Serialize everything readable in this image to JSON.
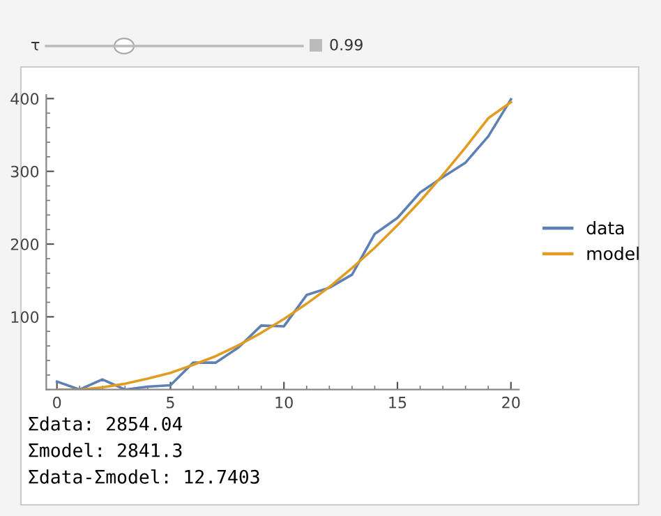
{
  "chart_data": {
    "type": "line",
    "x": [
      0,
      1,
      2,
      3,
      4,
      5,
      6,
      7,
      8,
      9,
      10,
      11,
      12,
      13,
      14,
      15,
      16,
      17,
      18,
      19,
      20
    ],
    "series": [
      {
        "name": "data",
        "color": "#5e81b5",
        "values": [
          11,
          0,
          14,
          0,
          4,
          6,
          37,
          37,
          58,
          88,
          87,
          130,
          140,
          158,
          214,
          236,
          271,
          292,
          312,
          348,
          399
        ]
      },
      {
        "name": "model",
        "color": "#e19c24",
        "values": [
          0,
          0,
          3,
          8,
          15,
          23,
          34,
          46,
          61,
          78,
          97,
          118,
          141,
          167,
          195,
          226,
          259,
          295,
          333,
          373,
          395
        ]
      }
    ],
    "xlim": [
      -0.47,
      20.35
    ],
    "ylim": [
      0,
      405
    ],
    "xticks": [
      0,
      5,
      10,
      15,
      20
    ],
    "yticks": [
      100,
      200,
      300,
      400
    ],
    "grid": false,
    "legend": "right",
    "marker": "none",
    "line_style": "solid",
    "annotations": [
      "τ",
      "0.99",
      "Σdata: 2854.04",
      "Σmodel: 2841.3",
      "Σdata-Σmodel: 12.7403"
    ]
  }
}
